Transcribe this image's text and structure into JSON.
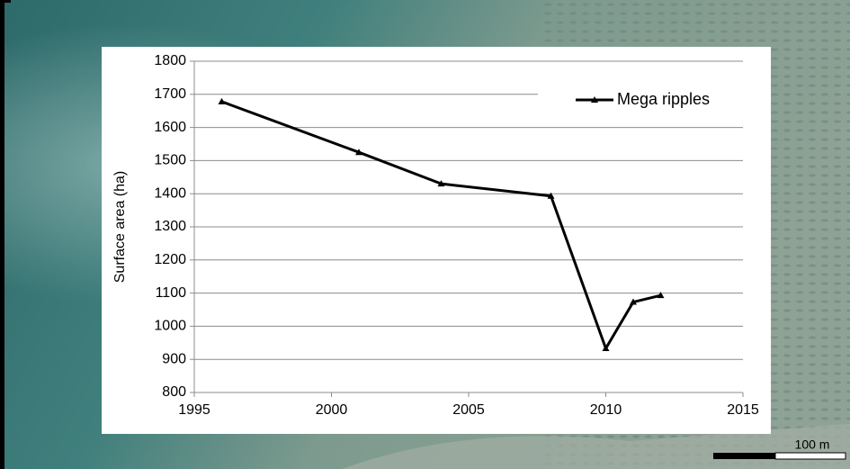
{
  "chart_data": {
    "type": "line",
    "y_label": "Surface area (ha)",
    "x": [
      1996,
      2001,
      2004,
      2008,
      2010,
      2011,
      2012
    ],
    "series": [
      {
        "name": "Mega ripples",
        "color": "#000000",
        "values": [
          1678,
          1525,
          1430,
          1393,
          933,
          1073,
          1093
        ]
      }
    ],
    "xlim": [
      1995,
      2015
    ],
    "xticks": [
      1995,
      2000,
      2005,
      2010,
      2015
    ],
    "ylim": [
      800,
      1800
    ],
    "yticks": [
      800,
      900,
      1000,
      1100,
      1200,
      1300,
      1400,
      1500,
      1600,
      1700,
      1800
    ],
    "grid": true,
    "legend": "top-right",
    "annotations": [
      "100 m"
    ]
  }
}
